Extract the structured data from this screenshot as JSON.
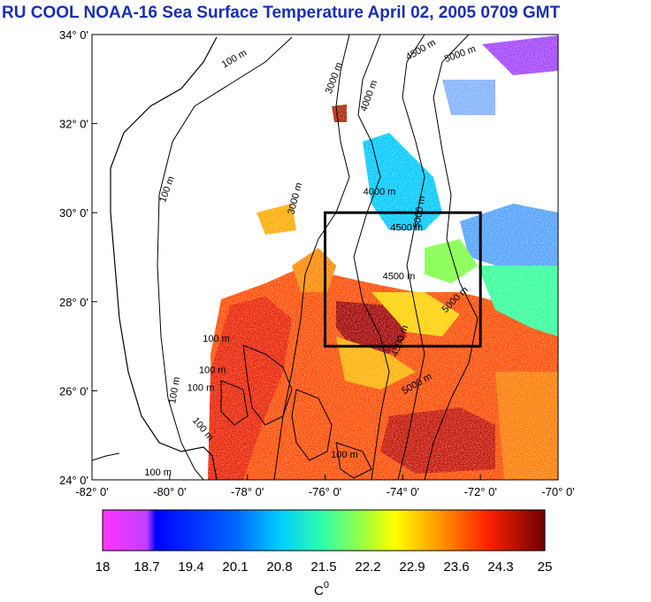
{
  "title": "RU COOL  NOAA-16 Sea Surface Temperature April 02, 2005 0709 GMT",
  "map": {
    "lat_ticks": [
      "34° 0'",
      "32° 0'",
      "30° 0'",
      "28° 0'",
      "26° 0'",
      "24° 0'"
    ],
    "lon_ticks": [
      "-82° 0'",
      "-80° 0'",
      "-78° 0'",
      "-76° 0'",
      "-74° 0'",
      "-72° 0'",
      "-70° 0'"
    ],
    "lat_range": [
      24,
      34
    ],
    "lon_range": [
      -82,
      -70
    ],
    "region_box": {
      "lon": [
        -76,
        -72
      ],
      "lat": [
        27,
        30
      ]
    },
    "contour_labels": [
      {
        "text": "100 m",
        "lon": -78.3,
        "lat": 33.4,
        "angle": -30
      },
      {
        "text": "3000 m",
        "lon": -75.7,
        "lat": 33.0,
        "angle": -70
      },
      {
        "text": "4000 m",
        "lon": -74.8,
        "lat": 32.6,
        "angle": -70
      },
      {
        "text": "4500 m",
        "lon": -73.5,
        "lat": 33.6,
        "angle": -30
      },
      {
        "text": "5000 m",
        "lon": -72.5,
        "lat": 33.5,
        "angle": -20
      },
      {
        "text": "100 m",
        "lon": -80.0,
        "lat": 30.5,
        "angle": -70
      },
      {
        "text": "3000 m",
        "lon": -76.7,
        "lat": 30.3,
        "angle": -75
      },
      {
        "text": "4000 m",
        "lon": -74.6,
        "lat": 30.4,
        "angle": 0
      },
      {
        "text": "4500 m",
        "lon": -73.9,
        "lat": 29.6,
        "angle": 0
      },
      {
        "text": "5000 m",
        "lon": -73.5,
        "lat": 30.0,
        "angle": -80
      },
      {
        "text": "4500 m",
        "lon": -74.1,
        "lat": 28.5,
        "angle": 0
      },
      {
        "text": "5000 m",
        "lon": -72.6,
        "lat": 28.0,
        "angle": -45
      },
      {
        "text": "100 m",
        "lon": -78.8,
        "lat": 27.1,
        "angle": 0
      },
      {
        "text": "100 m",
        "lon": -78.9,
        "lat": 26.4,
        "angle": 0
      },
      {
        "text": "100 m",
        "lon": -79.2,
        "lat": 26.0,
        "angle": 0
      },
      {
        "text": "100 m",
        "lon": -79.8,
        "lat": 26.0,
        "angle": -80
      },
      {
        "text": "100 m",
        "lon": -79.2,
        "lat": 25.1,
        "angle": 50
      },
      {
        "text": "5000 m",
        "lon": -73.6,
        "lat": 26.1,
        "angle": -30
      },
      {
        "text": "4500 m",
        "lon": -74.0,
        "lat": 27.1,
        "angle": -70
      },
      {
        "text": "100 m",
        "lon": -75.5,
        "lat": 24.5,
        "angle": 0
      },
      {
        "text": "100 m",
        "lon": -80.3,
        "lat": 24.1,
        "angle": 0
      }
    ]
  },
  "colorbar": {
    "ticks": [
      "18",
      "18.7",
      "19.4",
      "20.1",
      "20.8",
      "21.5",
      "22.2",
      "22.9",
      "23.6",
      "24.3",
      "25"
    ],
    "unit_label": "C",
    "unit_superscript": "0",
    "colors": [
      "#ff33ff",
      "#d44bff",
      "#0000ff",
      "#0066ff",
      "#00ccff",
      "#00ffcc",
      "#66ff33",
      "#ffff00",
      "#ff9900",
      "#ff3300",
      "#cc0000",
      "#7a0000"
    ]
  }
}
